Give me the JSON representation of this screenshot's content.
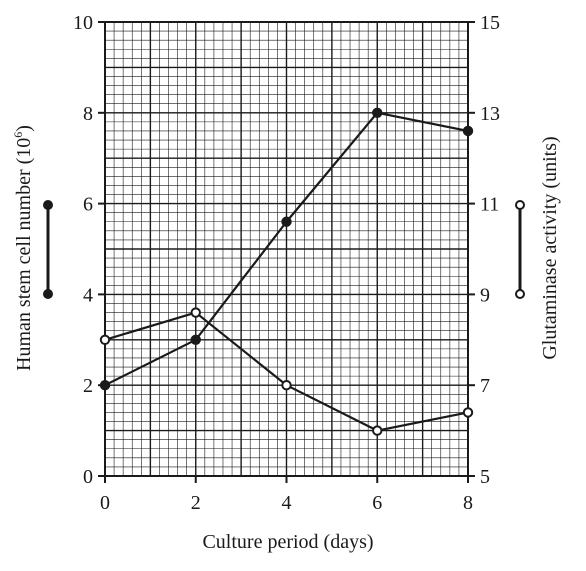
{
  "chart_data": {
    "type": "line",
    "title": "",
    "xlabel": "Culture period (days)",
    "ylabel_left": "Human stem cell number (10^6)",
    "ylabel_left_base": "Human stem cell number (10",
    "ylabel_left_exp": "6",
    "ylabel_left_close": ")",
    "ylabel_right": "Glutaminase activity (units)",
    "xlim": [
      0,
      8
    ],
    "ylim_left": [
      0,
      10
    ],
    "ylim_right": [
      5,
      15
    ],
    "x_ticks": [
      "0",
      "2",
      "4",
      "6",
      "8"
    ],
    "y_left_ticks": [
      "0",
      "2",
      "4",
      "6",
      "8",
      "10"
    ],
    "y_right_ticks": [
      "5",
      "7",
      "9",
      "11",
      "13",
      "15"
    ],
    "grid": true,
    "series": [
      {
        "axis": "left",
        "marker": "filled",
        "x": [
          0,
          2,
          4,
          6,
          8
        ],
        "y": [
          2.0,
          3.0,
          5.6,
          8.0,
          7.6
        ]
      },
      {
        "axis": "right",
        "marker": "open",
        "x": [
          0,
          2,
          4,
          6,
          8
        ],
        "y": [
          8.0,
          8.6,
          7.0,
          6.0,
          6.4
        ]
      }
    ],
    "legend": [
      {
        "axis": "left",
        "marker": "filled",
        "position": "left-of-axis"
      },
      {
        "axis": "right",
        "marker": "open",
        "position": "right-of-axis"
      }
    ],
    "colors": {
      "line": "#1a1a1a",
      "grid": "#1a1a1a",
      "background": "#ffffff"
    }
  }
}
